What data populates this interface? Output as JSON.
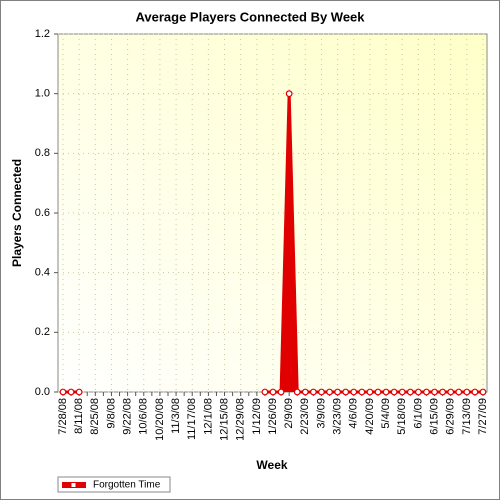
{
  "chart_data": {
    "type": "line",
    "title": "Average Players Connected By Week",
    "x_label": "Week",
    "y_label": "Players Connected",
    "categories": [
      "7/28/08",
      null,
      "8/11/08",
      null,
      "8/25/08",
      null,
      "9/8/08",
      null,
      "9/22/08",
      null,
      "10/6/08",
      null,
      "10/20/08",
      null,
      "11/3/08",
      null,
      "11/17/08",
      null,
      "12/1/08",
      null,
      "12/15/08",
      null,
      "12/29/08",
      null,
      "1/12/09",
      null,
      "1/26/09",
      null,
      "2/9/09",
      null,
      "2/23/09",
      null,
      "3/9/09",
      null,
      "3/23/09",
      null,
      "4/6/09",
      null,
      "4/20/09",
      null,
      "5/4/09",
      null,
      "5/18/09",
      null,
      "6/1/09",
      null,
      "6/15/09",
      null,
      "6/29/09",
      null,
      "7/13/09",
      null,
      "7/27/09"
    ],
    "series": [
      {
        "name": "Forgotten Time",
        "color": "#e00000",
        "values": [
          0,
          0,
          0,
          null,
          null,
          null,
          null,
          null,
          null,
          null,
          null,
          null,
          null,
          null,
          null,
          null,
          null,
          null,
          null,
          null,
          null,
          null,
          null,
          null,
          null,
          0,
          0,
          0,
          1,
          0,
          0,
          0,
          0,
          0,
          0,
          0,
          0,
          0,
          0,
          0,
          0,
          0,
          0,
          0,
          0,
          0,
          0,
          0,
          0,
          0,
          0,
          0,
          0
        ]
      }
    ],
    "ylim": [
      0,
      1.2
    ],
    "yticks": [
      {
        "value": 0,
        "label": "0.0"
      },
      0.2,
      0.4,
      0.6,
      0.8,
      {
        "value": 1,
        "label": "1.0"
      },
      1.2
    ],
    "grid": true,
    "legend": "bottom-left"
  }
}
